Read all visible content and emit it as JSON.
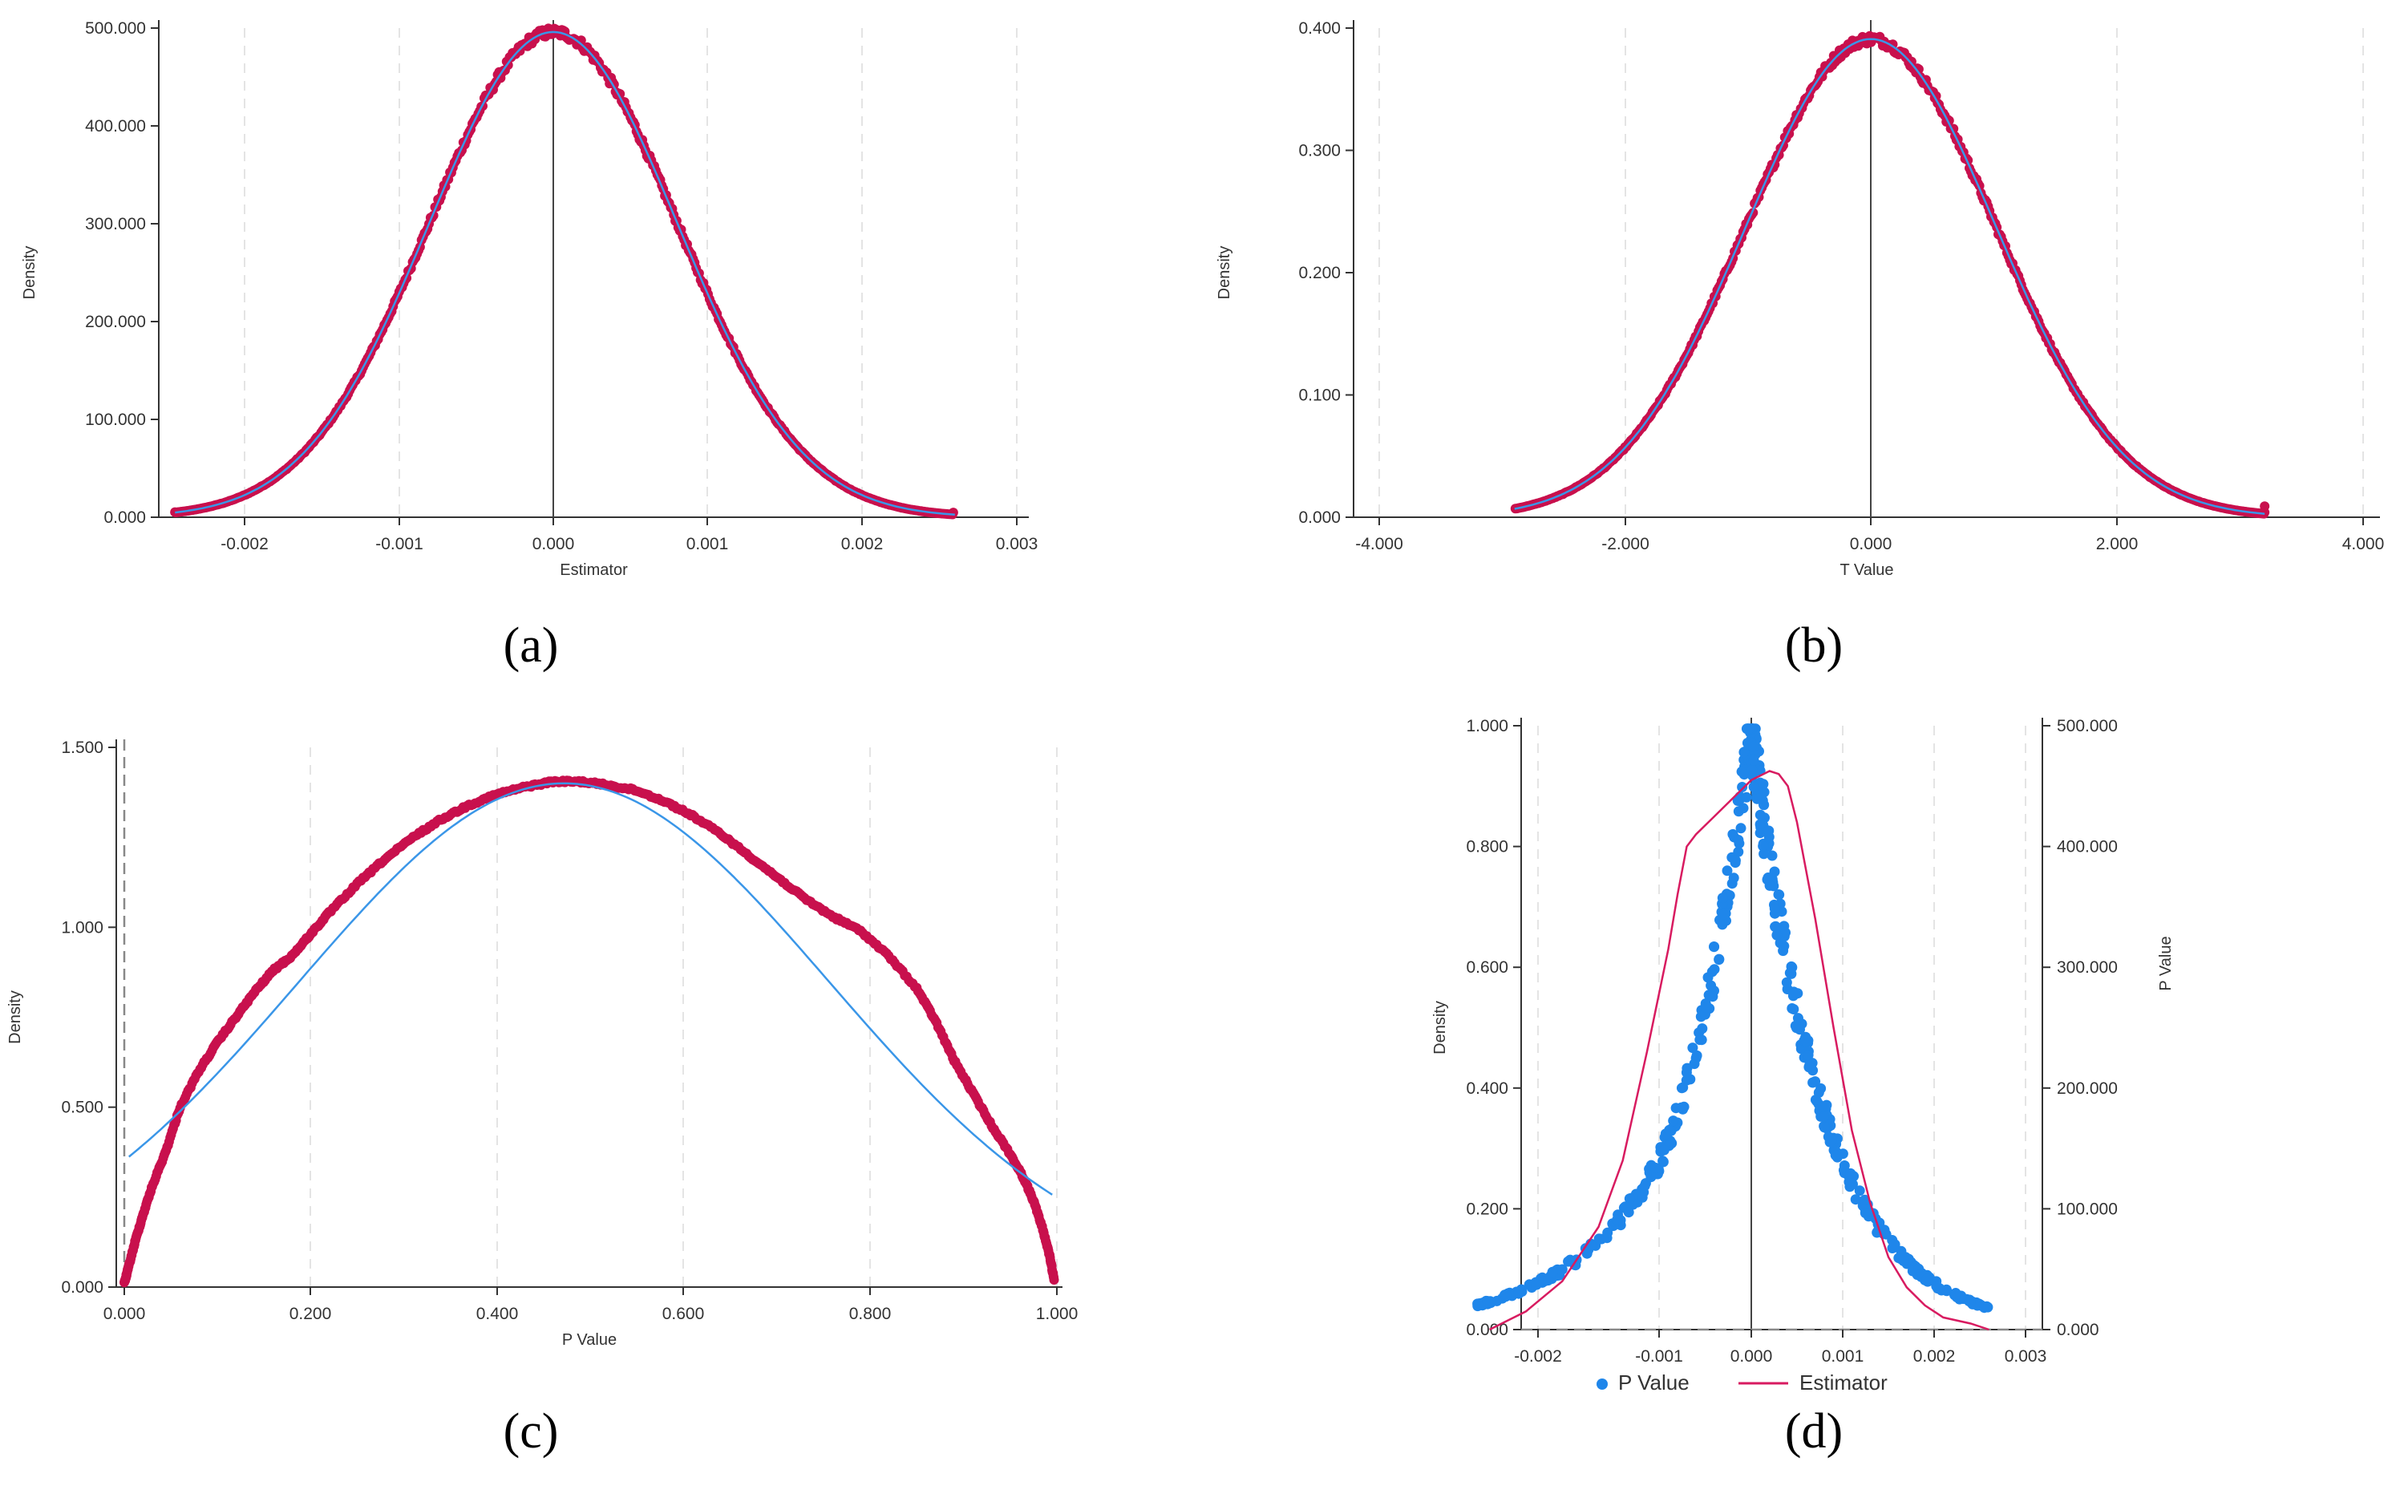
{
  "colors": {
    "points_red": "#c8104d",
    "fit_blue": "#3a96e8",
    "points_blue": "#1f86ea",
    "line_red": "#d81b60",
    "axis": "#333333",
    "grid": "#e4e4e4",
    "zero_line": "#444444",
    "dash_line": "#888888"
  },
  "chart_data": [
    {
      "id": "a",
      "caption": "(a)",
      "type": "scatter",
      "xlabel": "Estimator",
      "ylabel": "Density",
      "xlim": [
        -0.00245,
        0.003
      ],
      "ylim": [
        0,
        500000
      ],
      "xticks": [
        -0.002,
        -0.001,
        0.0,
        0.001,
        0.002,
        0.003
      ],
      "xtick_labels": [
        "-0.002",
        "-0.001",
        "0.000",
        "0.001",
        "0.002",
        "0.003"
      ],
      "yticks": [
        0,
        100000,
        200000,
        300000,
        400000,
        500000
      ],
      "ytick_labels": [
        "0.000",
        "100.000",
        "200.000",
        "300.000",
        "400.000",
        "500.000"
      ],
      "grid_x": [
        -0.002,
        -0.001,
        0.001,
        0.002,
        0.003
      ],
      "zero_line_x": 0,
      "series": [
        {
          "name": "points",
          "kind": "dots",
          "color": "#c8104d",
          "dist": {
            "family": "normal",
            "mean": 0,
            "sd": 0.000805,
            "peak": 496000
          },
          "x_range": [
            -0.00245,
            0.00259
          ],
          "count": 520,
          "outliers": [
            [
              -0.00245,
              5200
            ],
            [
              0.00259,
              4800
            ]
          ]
        },
        {
          "name": "normal fit",
          "kind": "line",
          "color": "#3a96e8",
          "dist": {
            "family": "normal",
            "mean": 0,
            "sd": 0.000805,
            "peak": 496000
          },
          "x_range": [
            -0.00245,
            0.0026
          ]
        }
      ]
    },
    {
      "id": "b",
      "caption": "(b)",
      "type": "scatter",
      "xlabel": "T Value",
      "ylabel": "Density",
      "xlim": [
        -4.2,
        4.0
      ],
      "ylim": [
        0,
        0.4
      ],
      "xticks": [
        -4,
        -2,
        0,
        2,
        4
      ],
      "xtick_labels": [
        "-4.000",
        "-2.000",
        "0.000",
        "2.000",
        "4.000"
      ],
      "yticks": [
        0,
        0.1,
        0.2,
        0.3,
        0.4
      ],
      "ytick_labels": [
        "0.000",
        "0.100",
        "0.200",
        "0.300",
        "0.400"
      ],
      "grid_x": [
        -4,
        -2,
        2,
        4
      ],
      "zero_line_x": 0,
      "series": [
        {
          "name": "points",
          "kind": "dots",
          "color": "#c8104d",
          "dist": {
            "family": "normal",
            "mean": 0,
            "sd": 1.02,
            "peak": 0.391
          },
          "x_range": [
            -2.9,
            3.2
          ],
          "count": 520,
          "outliers": [
            [
              3.2,
              0.009
            ],
            [
              3.2,
              0.004
            ]
          ]
        },
        {
          "name": "normal fit",
          "kind": "line",
          "color": "#3a96e8",
          "dist": {
            "family": "normal",
            "mean": 0,
            "sd": 1.02,
            "peak": 0.391
          },
          "x_range": [
            -2.9,
            3.2
          ]
        }
      ]
    },
    {
      "id": "c",
      "caption": "(c)",
      "type": "scatter",
      "xlabel": "P Value",
      "ylabel": "Density",
      "xlim": [
        0,
        1.0
      ],
      "ylim": [
        0,
        1.5
      ],
      "xticks": [
        0,
        0.2,
        0.4,
        0.6,
        0.8,
        1.0
      ],
      "xtick_labels": [
        "0.000",
        "0.200",
        "0.400",
        "0.600",
        "0.800",
        "1.000"
      ],
      "yticks": [
        0,
        0.5,
        1.0,
        1.5
      ],
      "ytick_labels": [
        "0.000",
        "0.500",
        "1.000",
        "1.500"
      ],
      "grid_x": [
        0.2,
        0.4,
        0.6,
        0.8,
        1.0
      ],
      "dashed_line_x": 0,
      "series": [
        {
          "name": "points",
          "kind": "dots",
          "color": "#c8104d",
          "points": [
            [
              0.0,
              0.01
            ],
            [
              0.005,
              0.06
            ],
            [
              0.012,
              0.13
            ],
            [
              0.02,
              0.2
            ],
            [
              0.03,
              0.28
            ],
            [
              0.045,
              0.38
            ],
            [
              0.06,
              0.5
            ],
            [
              0.08,
              0.6
            ],
            [
              0.1,
              0.68
            ],
            [
              0.12,
              0.75
            ],
            [
              0.14,
              0.82
            ],
            [
              0.16,
              0.88
            ],
            [
              0.18,
              0.92
            ],
            [
              0.2,
              0.98
            ],
            [
              0.22,
              1.04
            ],
            [
              0.25,
              1.12
            ],
            [
              0.28,
              1.19
            ],
            [
              0.31,
              1.25
            ],
            [
              0.34,
              1.3
            ],
            [
              0.37,
              1.34
            ],
            [
              0.4,
              1.37
            ],
            [
              0.43,
              1.39
            ],
            [
              0.46,
              1.405
            ],
            [
              0.49,
              1.405
            ],
            [
              0.52,
              1.395
            ],
            [
              0.55,
              1.38
            ],
            [
              0.58,
              1.35
            ],
            [
              0.61,
              1.31
            ],
            [
              0.64,
              1.26
            ],
            [
              0.67,
              1.2
            ],
            [
              0.7,
              1.14
            ],
            [
              0.73,
              1.08
            ],
            [
              0.76,
              1.03
            ],
            [
              0.79,
              0.99
            ],
            [
              0.82,
              0.92
            ],
            [
              0.85,
              0.83
            ],
            [
              0.87,
              0.74
            ],
            [
              0.89,
              0.63
            ],
            [
              0.91,
              0.54
            ],
            [
              0.93,
              0.45
            ],
            [
              0.95,
              0.37
            ],
            [
              0.965,
              0.3
            ],
            [
              0.975,
              0.24
            ],
            [
              0.985,
              0.16
            ],
            [
              0.992,
              0.09
            ],
            [
              0.997,
              0.02
            ]
          ]
        },
        {
          "name": "normal fit",
          "kind": "line",
          "color": "#3a96e8",
          "dist": {
            "family": "normal",
            "mean": 0.472,
            "sd": 0.284,
            "peak": 1.4
          },
          "x_range": [
            0.005,
            0.995
          ]
        }
      ]
    },
    {
      "id": "d",
      "caption": "(d)",
      "type": "scatter",
      "xlabel": "",
      "ylabel": "Density",
      "ylabel_right": "P Value",
      "xlim": [
        -0.0025,
        0.003
      ],
      "ylim": [
        0,
        1.0
      ],
      "ylim_right": [
        0,
        500000
      ],
      "xticks": [
        -0.002,
        -0.001,
        0.0,
        0.001,
        0.002,
        0.003
      ],
      "xtick_labels": [
        "-0.002",
        "-0.001",
        "0.000",
        "0.001",
        "0.002",
        "0.003"
      ],
      "yticks": [
        0,
        0.2,
        0.4,
        0.6,
        0.8,
        1.0
      ],
      "ytick_labels": [
        "0.000",
        "0.200",
        "0.400",
        "0.600",
        "0.800",
        "1.000"
      ],
      "yticks_right": [
        0,
        100000,
        200000,
        300000,
        400000,
        500000
      ],
      "ytick_labels_right": [
        "0.000",
        "100.000",
        "200.000",
        "300.000",
        "400.000",
        "500.000"
      ],
      "grid_x": [
        -0.002,
        -0.001,
        0.001,
        0.002,
        0.003
      ],
      "zero_line_x": 0,
      "dashed_line_y": 0,
      "legend": [
        "P Value",
        "Estimator"
      ],
      "legend_position": "bottom",
      "series": [
        {
          "name": "P Value",
          "kind": "dots",
          "color": "#1f86ea",
          "axis": "left",
          "dist": {
            "family": "cusp",
            "scale": 0.00078
          },
          "x_range": [
            -0.0025,
            0.0026
          ],
          "count": 480
        },
        {
          "name": "Estimator",
          "kind": "line",
          "color": "#d81b60",
          "axis": "left",
          "points": [
            [
              -0.0024,
              0.0
            ],
            [
              -0.0021,
              0.03
            ],
            [
              -0.0018,
              0.08
            ],
            [
              -0.0015,
              0.17
            ],
            [
              -0.0013,
              0.28
            ],
            [
              -0.0011,
              0.46
            ],
            [
              -0.0009,
              0.63
            ],
            [
              -0.0008,
              0.72
            ],
            [
              -0.0007,
              0.8
            ],
            [
              -0.0006,
              0.82
            ],
            [
              -0.0004,
              0.85
            ],
            [
              -0.0002,
              0.88
            ],
            [
              0.0,
              0.91
            ],
            [
              0.0002,
              0.925
            ],
            [
              0.0003,
              0.92
            ],
            [
              0.0004,
              0.9
            ],
            [
              0.0005,
              0.84
            ],
            [
              0.0007,
              0.68
            ],
            [
              0.0009,
              0.5
            ],
            [
              0.0011,
              0.33
            ],
            [
              0.0013,
              0.21
            ],
            [
              0.0015,
              0.12
            ],
            [
              0.0017,
              0.07
            ],
            [
              0.0019,
              0.04
            ],
            [
              0.0021,
              0.02
            ],
            [
              0.0024,
              0.01
            ],
            [
              0.0026,
              0.0
            ]
          ]
        }
      ]
    }
  ]
}
